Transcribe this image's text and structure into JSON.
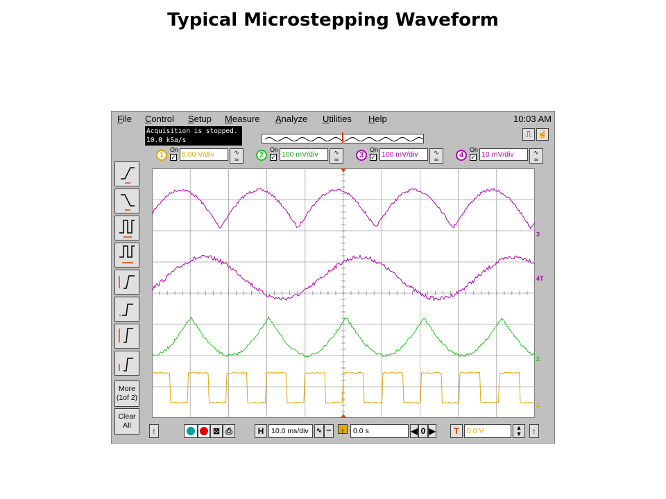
{
  "slide": {
    "title": "Typical Microstepping Waveform"
  },
  "menu": {
    "items": [
      "File",
      "Control",
      "Setup",
      "Measure",
      "Analyze",
      "Utilities",
      "Help"
    ],
    "clock": "10:03 AM"
  },
  "status": {
    "line1": "Acquisition is stopped.",
    "line2": "10.0 kSa/s"
  },
  "channels": [
    {
      "number": "1",
      "on_label": "On",
      "scale": "5.00 V/div",
      "color": "#e0a800"
    },
    {
      "number": "2",
      "on_label": "On",
      "scale": "100 mV/div",
      "color": "#22c022"
    },
    {
      "number": "3",
      "on_label": "On",
      "scale": "100 mV/div",
      "color": "#b000b0"
    },
    {
      "number": "4",
      "on_label": "On",
      "scale": "10 mV/div",
      "color": "#b000b0"
    }
  ],
  "left_toolbar": {
    "more_line1": "More",
    "more_line2": "(1of 2)",
    "clear_line1": "Clear",
    "clear_line2": "All"
  },
  "bottom": {
    "horizontal_label": "H",
    "time_scale": "10.0 ms/div",
    "delay": "0.0 s",
    "trigger_label": "T",
    "trigger_level": "0.0 V"
  },
  "trace_markers": [
    "3",
    "4T",
    "2",
    "1"
  ],
  "colors": {
    "ch1": "#e0a800",
    "ch2": "#22c022",
    "ch3": "#b000b0",
    "ch4": "#b000b0",
    "trigger_marker": "#e04000"
  }
}
